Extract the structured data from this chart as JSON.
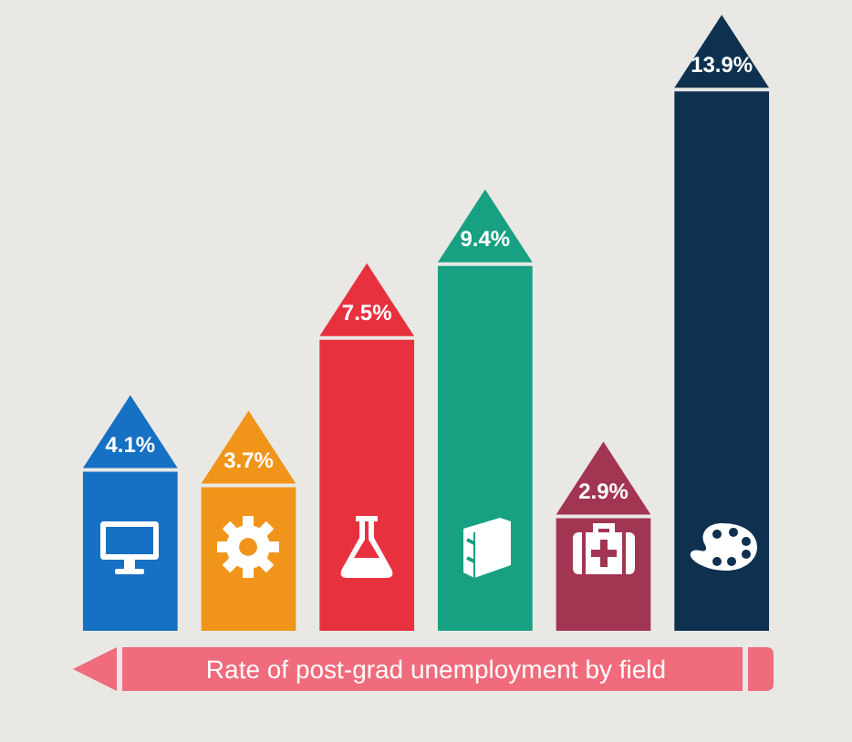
{
  "chart_data": {
    "type": "bar",
    "xlabel": "Rate of post-grad unemployment by field",
    "categories": [
      null,
      null,
      null,
      null,
      null,
      null
    ],
    "values": [
      4.1,
      3.7,
      7.5,
      9.4,
      2.9,
      13.9
    ],
    "colors": [
      "#1670c4",
      "#f0951a",
      "#e8313e",
      "#18a083",
      "#a23552",
      "#0f3150"
    ],
    "value_labels": [
      "4.1%",
      "3.7%",
      "7.5%",
      "9.4%",
      "2.9%",
      "13.9%"
    ],
    "tick_labels": false
  }
}
